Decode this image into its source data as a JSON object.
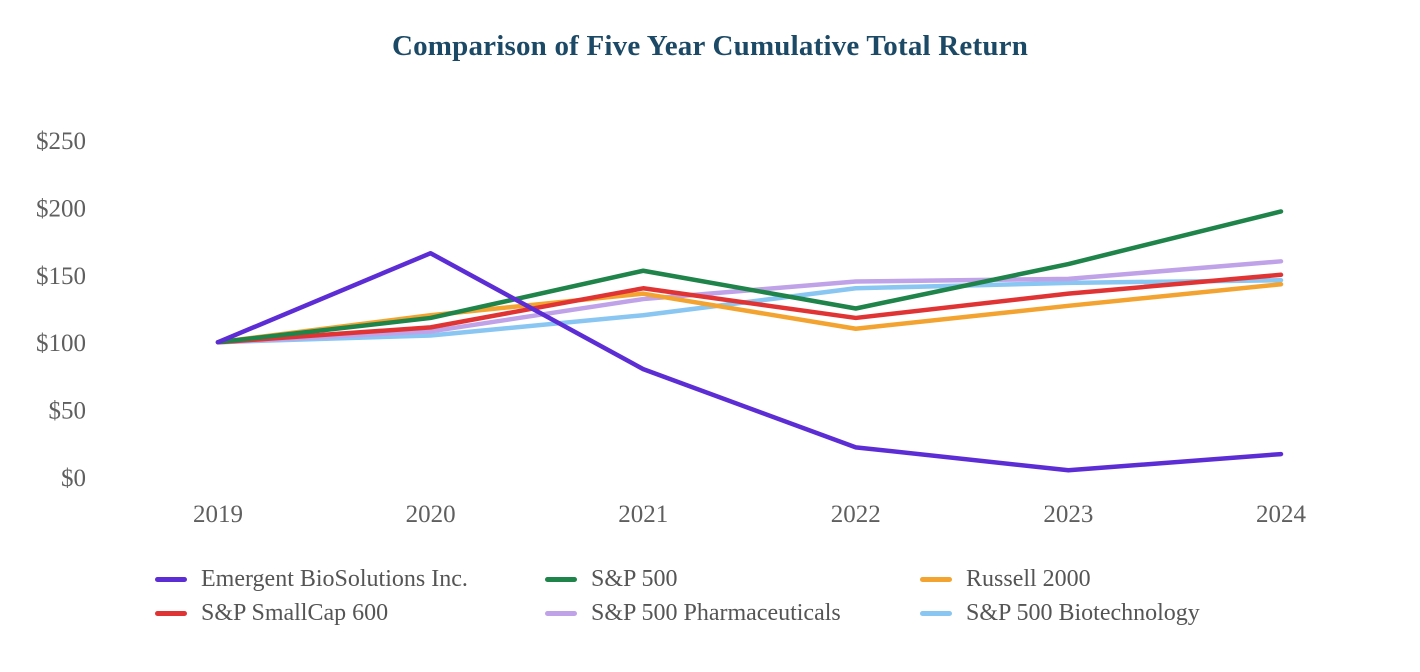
{
  "page": {
    "background": "#ffffff"
  },
  "chart_data": {
    "type": "line",
    "title": "Comparison of Five Year Cumulative Total Return",
    "title_color": "#1c4a66",
    "axis_text_color": "#5f5f5f",
    "legend_text_color": "#555555",
    "grid": false,
    "legend_position": "bottom",
    "categories": [
      "2019",
      "2020",
      "2021",
      "2022",
      "2023",
      "2024"
    ],
    "series": [
      {
        "name": "Emergent BioSolutions Inc.",
        "color": "#5c2dd5",
        "values": [
          100,
          166,
          80,
          22,
          5,
          17
        ]
      },
      {
        "name": "S&P 500",
        "color": "#1e8449",
        "values": [
          100,
          118,
          153,
          125,
          158,
          197
        ]
      },
      {
        "name": "Russell 2000",
        "color": "#f3a32f",
        "values": [
          100,
          120,
          136,
          110,
          127,
          143
        ]
      },
      {
        "name": "S&P SmallCap 600",
        "color": "#e03434",
        "values": [
          100,
          111,
          140,
          118,
          136,
          150
        ]
      },
      {
        "name": "S&P 500 Pharmaceuticals",
        "color": "#c0a2e8",
        "values": [
          100,
          108,
          132,
          145,
          147,
          160
        ]
      },
      {
        "name": "S&P 500 Biotechnology",
        "color": "#89c6f2",
        "values": [
          100,
          105,
          120,
          140,
          144,
          146
        ]
      }
    ],
    "y_ticks": [
      {
        "label": "$0",
        "value": 0
      },
      {
        "label": "$50",
        "value": 50
      },
      {
        "label": "$100",
        "value": 100
      },
      {
        "label": "$150",
        "value": 150
      },
      {
        "label": "$200",
        "value": 200
      },
      {
        "label": "$250",
        "value": 250
      }
    ],
    "ylim": [
      0,
      250
    ]
  }
}
